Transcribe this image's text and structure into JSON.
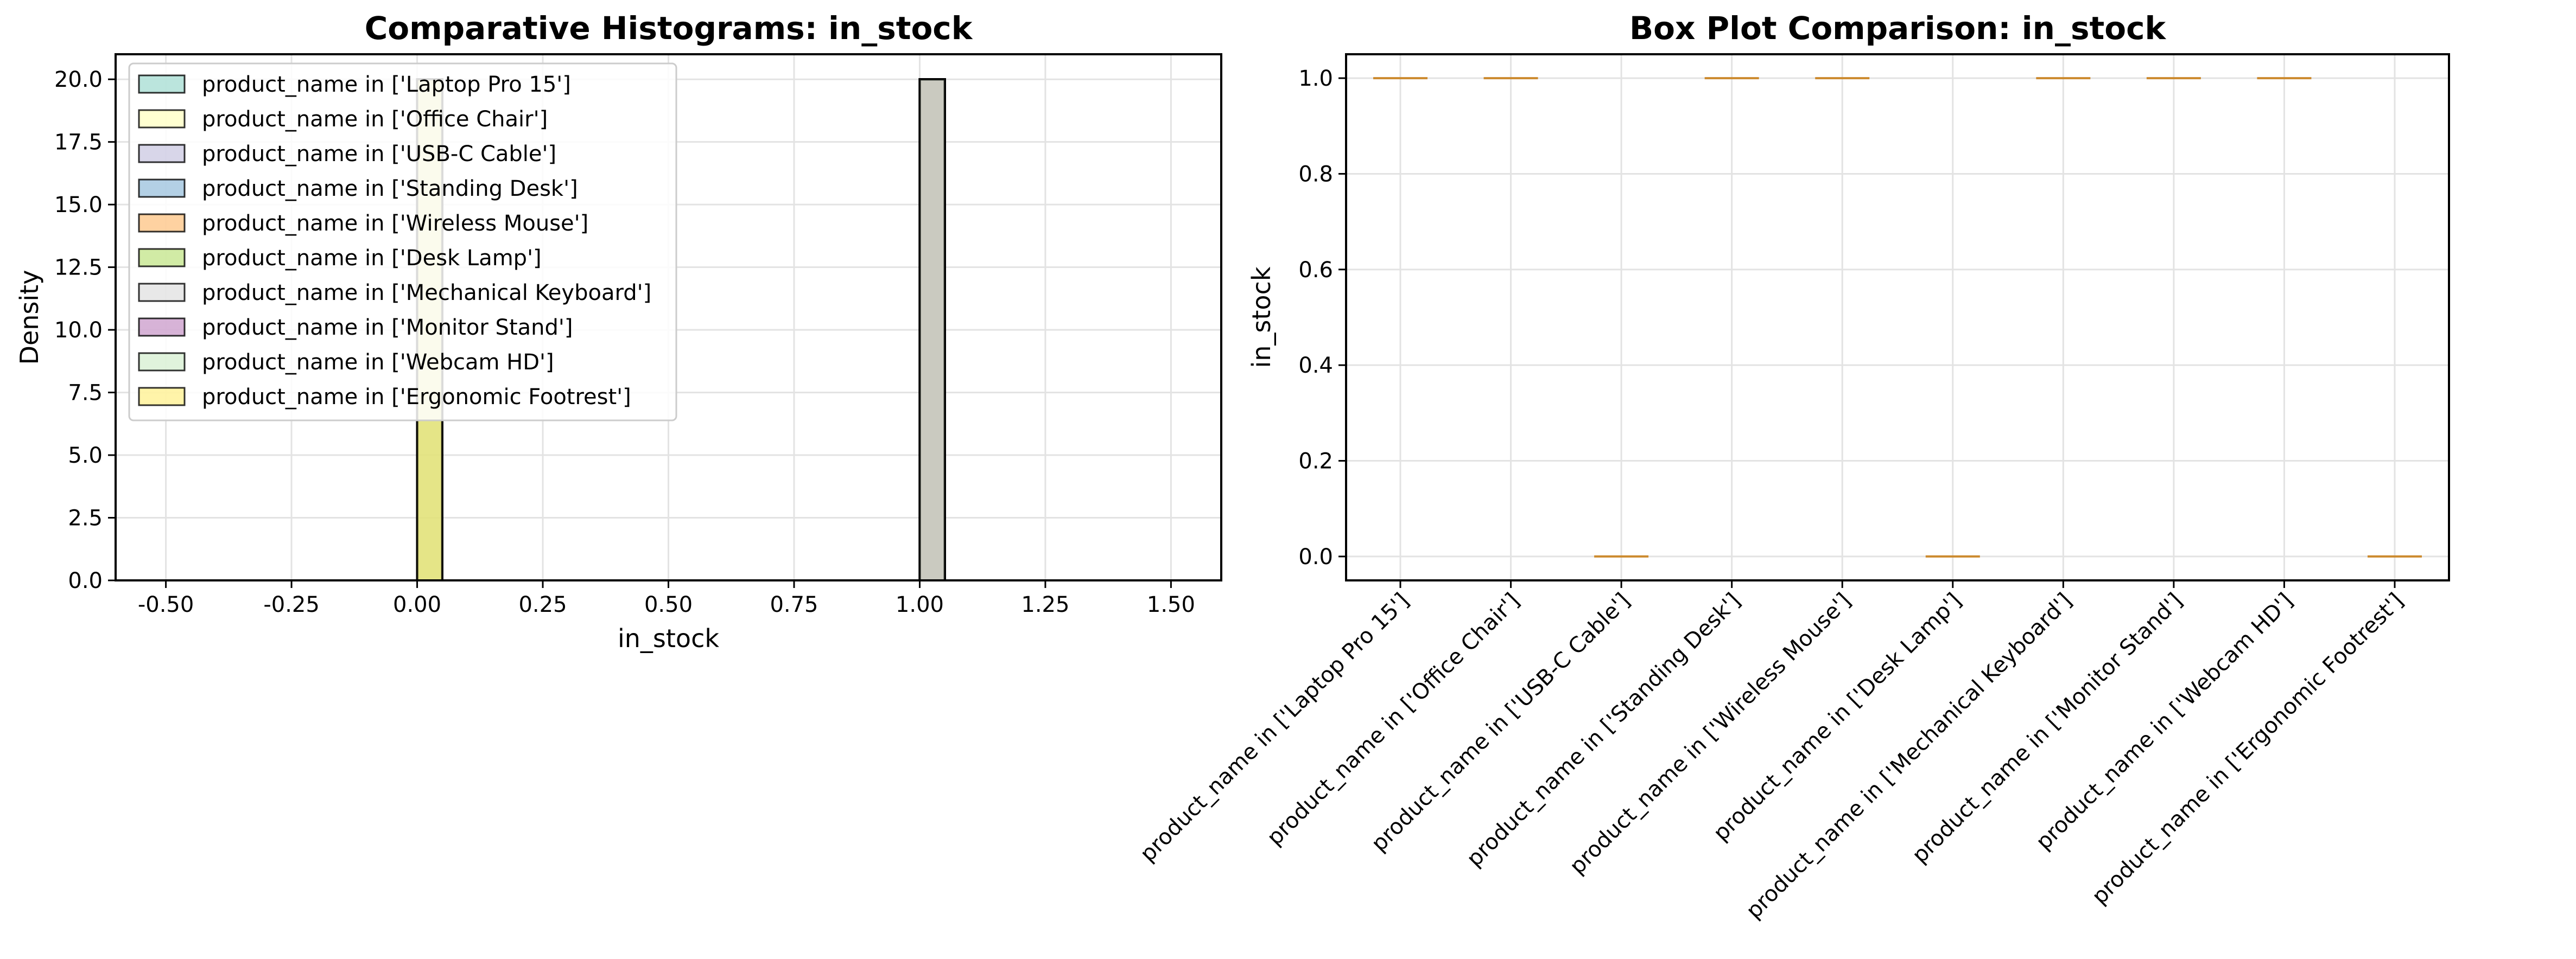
{
  "chart_data": [
    {
      "type": "bar",
      "subtype": "overlaid-histogram",
      "title": "Comparative Histograms: in_stock",
      "xlabel": "in_stock",
      "ylabel": "Density",
      "xlim": [
        -0.6,
        1.6
      ],
      "ylim": [
        0,
        21
      ],
      "xticks": [
        "-0.50",
        "-0.25",
        "0.00",
        "0.25",
        "0.50",
        "0.75",
        "1.00",
        "1.25",
        "1.50"
      ],
      "yticks": [
        "0.0",
        "2.5",
        "5.0",
        "7.5",
        "10.0",
        "12.5",
        "15.0",
        "17.5",
        "20.0"
      ],
      "grid": true,
      "legend_position": "upper-left",
      "series": [
        {
          "name": "product_name in ['Laptop Pro 15']",
          "color": "#8dd3c7",
          "bin_range": [
            1.0,
            1.05
          ],
          "density": 20
        },
        {
          "name": "product_name in ['Office Chair']",
          "color": "#ffffb3",
          "bin_range": [
            1.0,
            1.05
          ],
          "density": 20
        },
        {
          "name": "product_name in ['USB-C Cable']",
          "color": "#bebada",
          "bin_range": [
            0.0,
            0.05
          ],
          "density": 20
        },
        {
          "name": "product_name in ['Standing Desk']",
          "color": "#80b1d3",
          "bin_range": [
            1.0,
            1.05
          ],
          "density": 20
        },
        {
          "name": "product_name in ['Wireless Mouse']",
          "color": "#fdb462",
          "bin_range": [
            1.0,
            1.05
          ],
          "density": 20
        },
        {
          "name": "product_name in ['Desk Lamp']",
          "color": "#b3de69",
          "bin_range": [
            0.0,
            0.05
          ],
          "density": 20
        },
        {
          "name": "product_name in ['Mechanical Keyboard']",
          "color": "#d9d9d9",
          "bin_range": [
            1.0,
            1.05
          ],
          "density": 20
        },
        {
          "name": "product_name in ['Monitor Stand']",
          "color": "#bc80bd",
          "bin_range": [
            1.0,
            1.05
          ],
          "density": 20
        },
        {
          "name": "product_name in ['Webcam HD']",
          "color": "#ccebc5",
          "bin_range": [
            1.0,
            1.05
          ],
          "density": 20
        },
        {
          "name": "product_name in ['Ergonomic Footrest']",
          "color": "#ffed6f",
          "bin_range": [
            0.0,
            0.05
          ],
          "density": 20
        }
      ]
    },
    {
      "type": "box",
      "title": "Box Plot Comparison: in_stock",
      "xlabel": "",
      "ylabel": "in_stock",
      "ylim": [
        -0.05,
        1.05
      ],
      "yticks": [
        "0.0",
        "0.2",
        "0.4",
        "0.6",
        "0.8",
        "1.0"
      ],
      "grid": true,
      "median_color": "#cc8a2e",
      "categories": [
        "product_name in ['Laptop Pro 15']",
        "product_name in ['Office Chair']",
        "product_name in ['USB-C Cable']",
        "product_name in ['Standing Desk']",
        "product_name in ['Wireless Mouse']",
        "product_name in ['Desk Lamp']",
        "product_name in ['Mechanical Keyboard']",
        "product_name in ['Monitor Stand']",
        "product_name in ['Webcam HD']",
        "product_name in ['Ergonomic Footrest']"
      ],
      "values": [
        1,
        1,
        0,
        1,
        1,
        0,
        1,
        1,
        1,
        0
      ]
    }
  ]
}
